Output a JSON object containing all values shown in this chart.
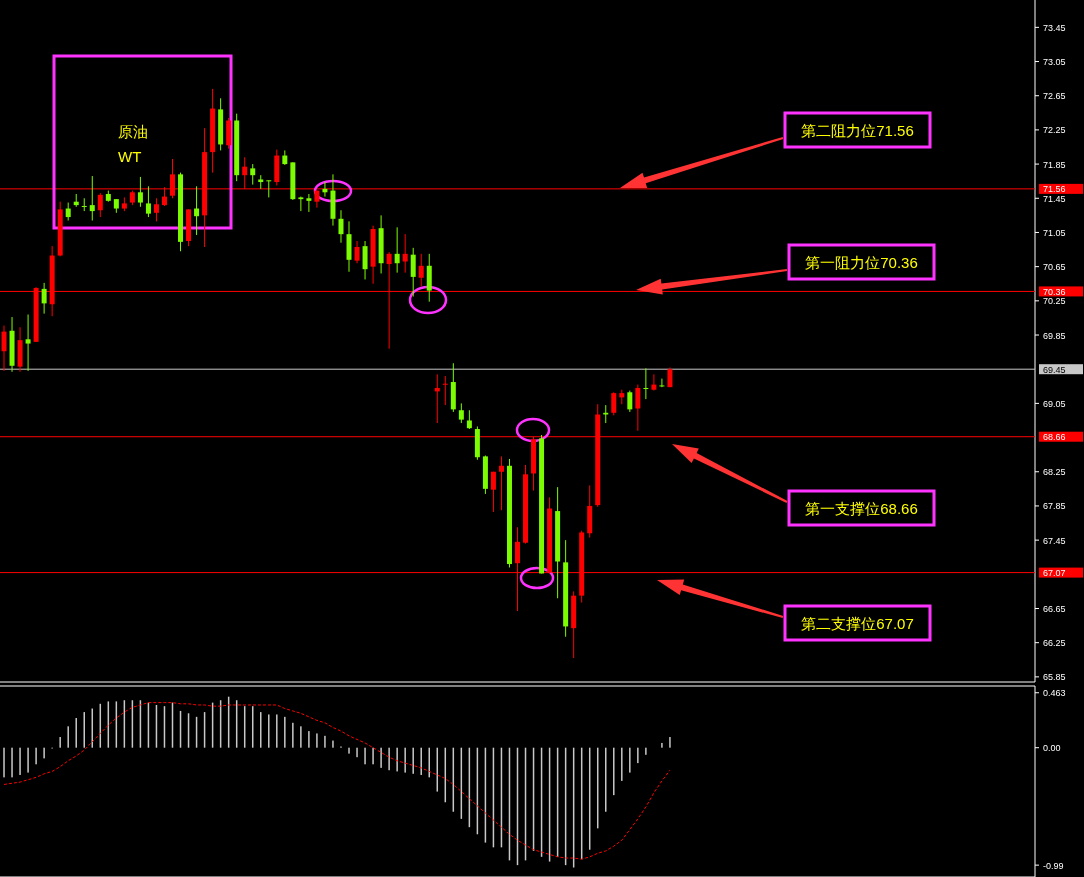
{
  "chart_data": [
    {
      "type": "candlestick",
      "categories": [
        null,
        null,
        null,
        null,
        null,
        null,
        null,
        null,
        null,
        null,
        null,
        null,
        null,
        null,
        null,
        null,
        null,
        null,
        null,
        null,
        null,
        null,
        null,
        null,
        null,
        null,
        null,
        null,
        null,
        null,
        null,
        null,
        null,
        null,
        null,
        null,
        null,
        null,
        null,
        null,
        null,
        null,
        null,
        null,
        null,
        null,
        null,
        null,
        null,
        null,
        null,
        null,
        null,
        null,
        null,
        null,
        null,
        null,
        null,
        null,
        null,
        null,
        null,
        null,
        null,
        null,
        null,
        null,
        null,
        null,
        null,
        null,
        null,
        null,
        null,
        null,
        null,
        null,
        null,
        null,
        null,
        null,
        null,
        null,
        null,
        null,
        null,
        null,
        null,
        null,
        null,
        null,
        null,
        null,
        null,
        null,
        null,
        null,
        null,
        null,
        null,
        null,
        null,
        null,
        null,
        null,
        null,
        null,
        null,
        null,
        null,
        null,
        null,
        null,
        null,
        null,
        null,
        null,
        null,
        null,
        null,
        null,
        null,
        null,
        null,
        null,
        null,
        null,
        null
      ],
      "ohlc": [
        [
          69.66,
          69.96,
          69.43,
          69.89
        ],
        [
          69.9,
          70.06,
          69.42,
          69.49
        ],
        [
          69.48,
          69.94,
          69.42,
          69.79
        ],
        [
          69.8,
          70.09,
          69.43,
          69.75
        ],
        [
          69.77,
          70.41,
          69.77,
          70.4
        ],
        [
          70.39,
          70.46,
          70.1,
          70.22
        ],
        [
          70.21,
          70.89,
          70.07,
          70.78
        ],
        [
          70.78,
          71.41,
          70.77,
          71.32
        ],
        [
          71.33,
          71.4,
          71.19,
          71.23
        ],
        [
          71.41,
          71.5,
          71.35,
          71.37
        ],
        [
          71.36,
          71.45,
          71.3,
          71.35
        ],
        [
          71.37,
          71.71,
          71.19,
          71.3
        ],
        [
          71.31,
          71.51,
          71.23,
          71.49
        ],
        [
          71.5,
          71.54,
          71.41,
          71.42
        ],
        [
          71.44,
          71.44,
          71.28,
          71.33
        ],
        [
          71.33,
          71.46,
          71.3,
          71.39
        ],
        [
          71.4,
          71.54,
          71.37,
          71.52
        ],
        [
          71.52,
          71.7,
          71.35,
          71.4
        ],
        [
          71.39,
          71.59,
          71.23,
          71.27
        ],
        [
          71.28,
          71.45,
          71.18,
          71.38
        ],
        [
          71.37,
          71.58,
          71.36,
          71.47
        ],
        [
          71.48,
          71.91,
          71.45,
          71.73
        ],
        [
          71.73,
          71.75,
          70.83,
          70.94
        ],
        [
          70.95,
          71.32,
          70.89,
          71.32
        ],
        [
          71.33,
          71.59,
          71.02,
          71.24
        ],
        [
          71.25,
          72.27,
          70.88,
          71.99
        ],
        [
          71.99,
          72.73,
          71.75,
          72.5
        ],
        [
          72.49,
          72.62,
          72.01,
          72.08
        ],
        [
          72.07,
          72.39,
          72.03,
          72.36
        ],
        [
          72.36,
          72.44,
          71.65,
          71.72
        ],
        [
          71.72,
          71.93,
          71.56,
          71.82
        ],
        [
          71.8,
          71.85,
          71.61,
          71.72
        ],
        [
          71.67,
          71.72,
          71.56,
          71.64
        ],
        [
          71.66,
          71.66,
          71.46,
          71.65
        ],
        [
          71.64,
          72.02,
          71.6,
          71.95
        ],
        [
          71.95,
          72.01,
          71.84,
          71.85
        ],
        [
          71.87,
          71.87,
          71.43,
          71.44
        ],
        [
          71.46,
          71.47,
          71.3,
          71.44
        ],
        [
          71.45,
          71.5,
          71.29,
          71.42
        ],
        [
          71.41,
          71.54,
          71.34,
          71.54
        ],
        [
          71.56,
          71.64,
          71.47,
          71.52
        ],
        [
          71.54,
          71.73,
          71.13,
          71.21
        ],
        [
          71.21,
          71.31,
          70.93,
          71.03
        ],
        [
          71.03,
          71.18,
          70.59,
          70.73
        ],
        [
          70.72,
          70.95,
          70.69,
          70.88
        ],
        [
          70.89,
          70.95,
          70.5,
          70.62
        ],
        [
          70.65,
          71.13,
          70.45,
          71.09
        ],
        [
          71.1,
          71.25,
          70.57,
          70.69
        ],
        [
          70.68,
          70.82,
          69.69,
          70.8
        ],
        [
          70.8,
          71.11,
          70.58,
          70.69
        ],
        [
          70.71,
          71.03,
          70.58,
          70.8
        ],
        [
          70.79,
          70.87,
          70.3,
          70.53
        ],
        [
          70.52,
          70.8,
          70.42,
          70.66
        ],
        [
          70.66,
          70.8,
          70.24,
          70.37
        ],
        [
          69.19,
          69.39,
          68.82,
          69.23
        ],
        [
          69.27,
          69.37,
          69.03,
          69.28
        ],
        [
          69.3,
          69.52,
          68.95,
          68.98
        ],
        [
          68.97,
          69.05,
          68.82,
          68.86
        ],
        [
          68.85,
          68.97,
          68.75,
          68.76
        ],
        [
          68.75,
          68.78,
          68.39,
          68.42
        ],
        [
          68.43,
          68.44,
          67.99,
          68.05
        ],
        [
          68.04,
          68.25,
          67.78,
          68.25
        ],
        [
          68.25,
          68.43,
          67.8,
          68.32
        ],
        [
          68.32,
          68.4,
          67.13,
          67.17
        ],
        [
          67.18,
          67.6,
          66.62,
          67.43
        ],
        [
          67.42,
          68.33,
          67.41,
          68.22
        ],
        [
          68.23,
          68.66,
          68.03,
          68.63
        ],
        [
          68.64,
          68.68,
          67.06,
          67.06
        ],
        [
          67.07,
          67.95,
          67.06,
          67.82
        ],
        [
          67.79,
          68.07,
          66.77,
          67.2
        ],
        [
          67.19,
          67.45,
          66.32,
          66.44
        ],
        [
          66.42,
          66.85,
          66.07,
          66.8
        ],
        [
          66.8,
          67.56,
          66.72,
          67.54
        ],
        [
          67.53,
          68.09,
          67.48,
          67.85
        ],
        [
          67.86,
          69.04,
          67.84,
          68.92
        ],
        [
          68.94,
          69.03,
          68.82,
          68.92
        ],
        [
          68.94,
          69.18,
          68.91,
          69.17
        ],
        [
          69.12,
          69.21,
          69.04,
          69.17
        ],
        [
          69.18,
          69.2,
          68.95,
          68.98
        ],
        [
          68.99,
          69.27,
          68.73,
          69.23
        ],
        [
          69.23,
          69.46,
          69.1,
          69.22
        ],
        [
          69.21,
          69.39,
          69.2,
          69.27
        ],
        [
          69.26,
          69.34,
          69.24,
          69.25
        ],
        [
          69.24,
          69.47,
          69.24,
          69.45
        ],
        null,
        null,
        null,
        null,
        null,
        null,
        null,
        null,
        null,
        null,
        null,
        null,
        null,
        null,
        null,
        null,
        null,
        null,
        null,
        null,
        null,
        null,
        null,
        null,
        null,
        null,
        null,
        null,
        null,
        null,
        null,
        null,
        null,
        null,
        null,
        null,
        null,
        null,
        null,
        null,
        null,
        null,
        null,
        null,
        null
      ],
      "colors": [
        "#ff0000",
        "#7cfc00",
        "#ff0000",
        "#7cfc00",
        "#ff0000",
        "#7cfc00",
        "#ff0000",
        "#ff0000",
        "#7cfc00",
        "#7cfc00",
        "#7cfc00",
        "#7cfc00",
        "#ff0000",
        "#7cfc00",
        "#7cfc00",
        "#ff0000",
        "#ff0000",
        "#7cfc00",
        "#7cfc00",
        "#ff0000",
        "#ff0000",
        "#ff0000",
        "#7cfc00",
        "#ff0000",
        "#7cfc00",
        "#ff0000",
        "#ff0000",
        "#7cfc00",
        "#ff0000",
        "#7cfc00",
        "#ff0000",
        "#7cfc00",
        "#7cfc00",
        "#7cfc00",
        "#ff0000",
        "#7cfc00",
        "#7cfc00",
        "#7cfc00",
        "#7cfc00",
        "#ff0000",
        "#7cfc00",
        "#7cfc00",
        "#7cfc00",
        "#7cfc00",
        "#ff0000",
        "#7cfc00",
        "#ff0000",
        "#7cfc00",
        "#ff0000",
        "#7cfc00",
        "#ff0000",
        "#7cfc00",
        "#ff0000",
        "#7cfc00",
        "#ff0000",
        "#ff0000",
        "#7cfc00",
        "#7cfc00",
        "#7cfc00",
        "#7cfc00",
        "#7cfc00",
        "#ff0000",
        "#ff0000",
        "#7cfc00",
        "#ff0000",
        "#ff0000",
        "#ff0000",
        "#7cfc00",
        "#ff0000",
        "#7cfc00",
        "#7cfc00",
        "#ff0000",
        "#ff0000",
        "#ff0000",
        "#ff0000",
        "#7cfc00",
        "#ff0000",
        "#ff0000",
        "#7cfc00",
        "#ff0000",
        "#7cfc00",
        "#ff0000",
        "#7cfc00",
        "#ff0000",
        null,
        null,
        null,
        null,
        null,
        null,
        null,
        null,
        null,
        null,
        null,
        null,
        null,
        null,
        null,
        null,
        null,
        null,
        null,
        null,
        null,
        null,
        null,
        null,
        null,
        null,
        null,
        null,
        null,
        null,
        null,
        null,
        null,
        null,
        null,
        null,
        null,
        null,
        null,
        null,
        null,
        null,
        null,
        null,
        null
      ],
      "ylim": [
        65.79,
        73.77
      ],
      "yticks": [
        65.85,
        66.25,
        66.65,
        67.45,
        67.85,
        68.25,
        69.05,
        69.85,
        70.25,
        70.65,
        71.05,
        71.45,
        71.85,
        72.25,
        72.65,
        73.05,
        73.45
      ],
      "ref_lines": [
        {
          "axis": "y",
          "value": 71.56,
          "label": "71.56",
          "color": "#ff0000"
        },
        {
          "axis": "y",
          "value": 70.36,
          "label": "70.36",
          "color": "#ff0000"
        },
        {
          "axis": "y",
          "value": 69.45,
          "label": "69.45",
          "color": "#c8c8c8"
        },
        {
          "axis": "y",
          "value": 68.66,
          "label": "68.66",
          "color": "#ff0000"
        },
        {
          "axis": "y",
          "value": 67.07,
          "label": "67.07",
          "color": "#ff0000"
        }
      ],
      "annotations": [
        "原油",
        "WT",
        "第二阻力位71.56",
        "第一阻力位70.36",
        "第一支撑位68.66",
        "第二支撑位67.07"
      ]
    },
    {
      "type": "bar",
      "categories": [
        null,
        null,
        null,
        null,
        null,
        null,
        null,
        null,
        null,
        null,
        null,
        null,
        null,
        null,
        null,
        null,
        null,
        null,
        null,
        null,
        null,
        null,
        null,
        null,
        null,
        null,
        null,
        null,
        null,
        null,
        null,
        null,
        null,
        null,
        null,
        null,
        null,
        null,
        null,
        null,
        null,
        null,
        null,
        null,
        null,
        null,
        null,
        null,
        null,
        null,
        null,
        null,
        null,
        null,
        null,
        null,
        null,
        null,
        null,
        null,
        null,
        null,
        null,
        null,
        null,
        null,
        null,
        null,
        null,
        null,
        null,
        null,
        null,
        null,
        null,
        null,
        null,
        null,
        null,
        null,
        null,
        null,
        null,
        null,
        null,
        null,
        null,
        null,
        null,
        null,
        null,
        null,
        null,
        null,
        null,
        null,
        null,
        null,
        null,
        null,
        null,
        null,
        null,
        null,
        null,
        null,
        null,
        null,
        null,
        null,
        null,
        null,
        null,
        null,
        null,
        null,
        null,
        null,
        null,
        null,
        null,
        null,
        null,
        null,
        null,
        null,
        null,
        null,
        null
      ],
      "series": [
        {
          "type": "bar",
          "color": "#c8c8c8",
          "values": [
            -0.25,
            -0.25,
            -0.23,
            -0.21,
            -0.14,
            -0.09,
            0.0,
            0.09,
            0.18,
            0.25,
            0.3,
            0.33,
            0.37,
            0.39,
            0.39,
            0.4,
            0.4,
            0.4,
            0.38,
            0.36,
            0.35,
            0.38,
            0.31,
            0.29,
            0.26,
            0.3,
            0.38,
            0.4,
            0.43,
            0.4,
            0.35,
            0.35,
            0.3,
            0.28,
            0.28,
            0.26,
            0.21,
            0.18,
            0.14,
            0.12,
            0.1,
            0.06,
            0.01,
            -0.05,
            -0.08,
            -0.14,
            -0.14,
            -0.17,
            -0.19,
            -0.2,
            -0.21,
            -0.22,
            -0.23,
            -0.25,
            -0.37,
            -0.46,
            -0.54,
            -0.6,
            -0.67,
            -0.73,
            -0.8,
            -0.84,
            -0.84,
            -0.95,
            -0.99,
            -0.95,
            -0.87,
            -0.92,
            -0.96,
            -0.92,
            -0.99,
            -1.01,
            -0.94,
            -0.86,
            -0.68,
            -0.54,
            -0.4,
            -0.28,
            -0.21,
            -0.13,
            -0.06,
            null,
            0.04,
            0.09,
            null,
            null,
            null,
            null,
            null,
            null,
            null,
            null,
            null,
            null,
            null,
            null,
            null,
            null,
            null,
            null,
            null,
            null,
            null,
            null,
            null,
            null,
            null,
            null,
            null,
            null,
            null,
            null,
            null,
            null,
            null,
            null,
            null,
            null,
            null,
            null,
            null,
            null,
            null,
            null,
            null,
            null,
            null,
            null,
            null
          ]
        },
        {
          "type": "line",
          "color": "#ff0000",
          "line_style": "dashed",
          "values": [
            -0.31,
            -0.3,
            -0.29,
            -0.27,
            -0.25,
            -0.22,
            -0.2,
            -0.16,
            -0.11,
            -0.07,
            -0.02,
            0.05,
            0.12,
            0.19,
            0.25,
            0.3,
            0.34,
            0.36,
            0.38,
            0.38,
            0.38,
            0.38,
            0.37,
            0.37,
            0.36,
            0.36,
            0.35,
            0.35,
            0.36,
            0.36,
            0.36,
            0.36,
            0.36,
            0.36,
            0.36,
            0.33,
            0.31,
            0.29,
            0.26,
            0.23,
            0.21,
            0.17,
            0.14,
            0.1,
            0.07,
            0.04,
            0.0,
            -0.04,
            -0.08,
            -0.11,
            -0.13,
            -0.15,
            -0.17,
            -0.2,
            -0.23,
            -0.26,
            -0.31,
            -0.37,
            -0.43,
            -0.49,
            -0.55,
            -0.61,
            -0.67,
            -0.73,
            -0.78,
            -0.82,
            -0.86,
            -0.88,
            -0.9,
            -0.92,
            -0.93,
            -0.93,
            -0.94,
            -0.92,
            -0.89,
            -0.87,
            -0.83,
            -0.78,
            -0.69,
            -0.6,
            -0.5,
            -0.38,
            -0.28,
            -0.19,
            null,
            null,
            null,
            null,
            null,
            null,
            null,
            null,
            null,
            null,
            null,
            null,
            null,
            null,
            null,
            null,
            null,
            null,
            null,
            null,
            null,
            null,
            null,
            null,
            null,
            null,
            null,
            null,
            null,
            null,
            null,
            null,
            null,
            null,
            null,
            null,
            null,
            null,
            null,
            null,
            null,
            null,
            null,
            null,
            null
          ]
        }
      ],
      "ylim": [
        -1.09,
        0.52
      ],
      "yticks": [
        0.463,
        {
          "value": 0,
          "label": "0.00"
        },
        -0.99
      ]
    }
  ]
}
